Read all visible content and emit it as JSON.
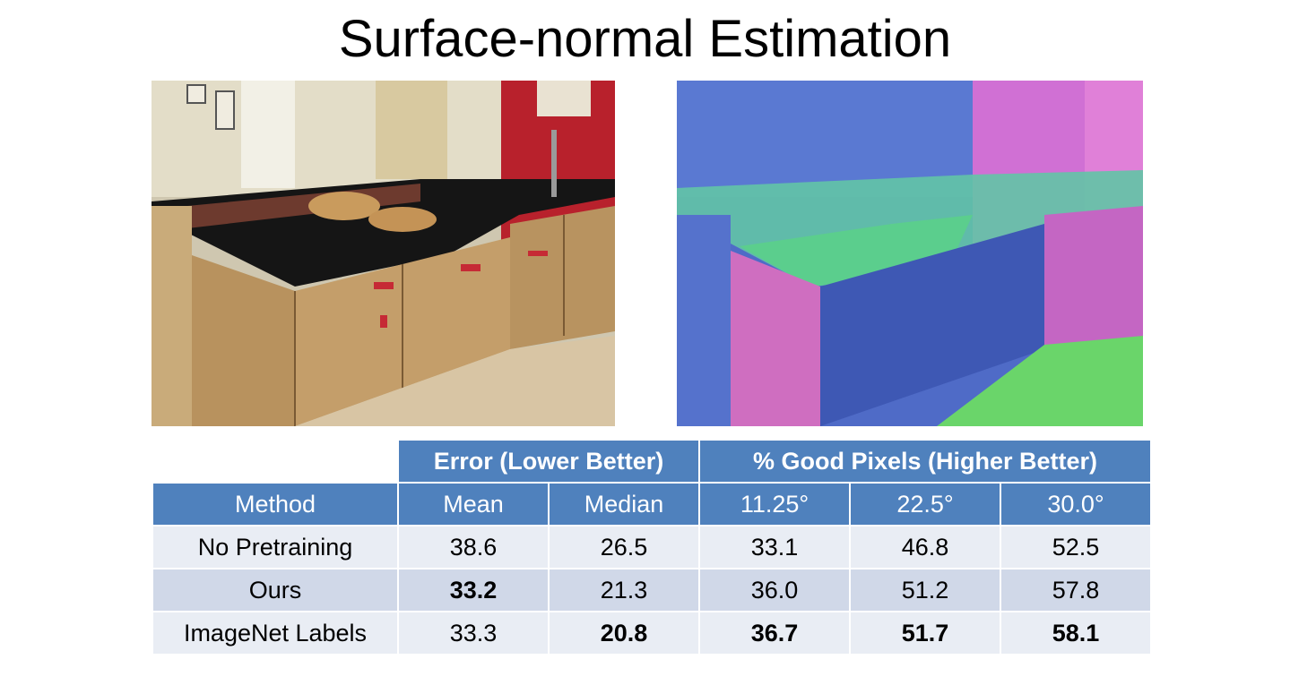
{
  "title": "Surface-normal Estimation",
  "images": {
    "input": "rgb-kitchen-photo",
    "output": "surface-normal-prediction"
  },
  "table": {
    "group_headers": [
      "Error (Lower Better)",
      "% Good Pixels (Higher Better)"
    ],
    "columns": [
      "Method",
      "Mean",
      "Median",
      "11.25°",
      "22.5°",
      "30.0°"
    ],
    "rows": [
      {
        "method": "No Pretraining",
        "values": [
          "38.6",
          "26.5",
          "33.1",
          "46.8",
          "52.5"
        ],
        "bold": [
          false,
          false,
          false,
          false,
          false
        ]
      },
      {
        "method": "Ours",
        "values": [
          "33.2",
          "21.3",
          "36.0",
          "51.2",
          "57.8"
        ],
        "bold": [
          true,
          false,
          false,
          false,
          false
        ]
      },
      {
        "method": "ImageNet Labels",
        "values": [
          "33.3",
          "20.8",
          "36.7",
          "51.7",
          "58.1"
        ],
        "bold": [
          false,
          true,
          true,
          true,
          true
        ]
      }
    ]
  },
  "colors": {
    "header": "#4f81bd",
    "row_light": "#e9edf4",
    "row_dark": "#d0d8e8"
  }
}
